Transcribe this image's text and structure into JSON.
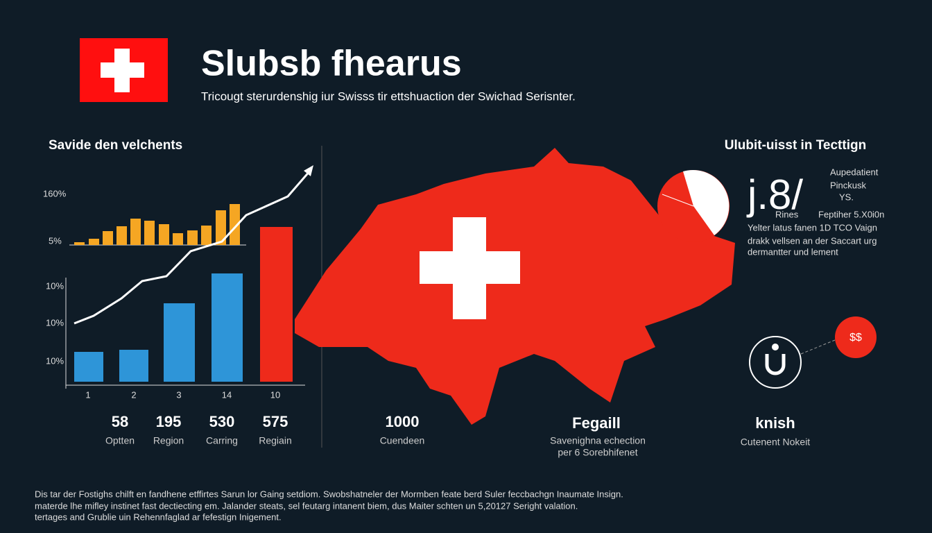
{
  "header": {
    "title": "Slubsb fhearus",
    "subtitle": "Tricougt sterurdenshig iur Swisss tir ettshuaction der Swichad Serisnter."
  },
  "left_panel": {
    "heading": "Savide den velchents",
    "top_axis_labels": [
      "160%",
      "5%"
    ],
    "bottom_axis_labels": [
      "10%",
      "10%",
      "10%"
    ],
    "x_labels": [
      "1",
      "2",
      "3",
      "14",
      "10"
    ]
  },
  "stats": [
    {
      "value": "58",
      "label": "Optten"
    },
    {
      "value": "195",
      "label": "Region"
    },
    {
      "value": "530",
      "label": "Carring"
    },
    {
      "value": "575",
      "label": "Regiain"
    },
    {
      "value": "1000",
      "label": "Cuendeen"
    },
    {
      "value": "Fegaill",
      "label": "Savenighna echection",
      "label2": "per 6 Sorebhifenet"
    },
    {
      "value": "knish",
      "label": "Cutenent Nokeit"
    }
  ],
  "right_panel": {
    "heading": "Ulubit-uisst in Tecttign",
    "big_figure": "j.8/",
    "notes": [
      "Aupedatient",
      "Pinckusk",
      "YS."
    ],
    "rines": "Rines",
    "feptiher": "Feptiher 5.X0i0n",
    "description": [
      "Yelter latus fanen 1D TCO Vaign",
      "drakk vellsen an der Saccart urg",
      "dermantter und lement"
    ],
    "badge": "$$"
  },
  "footer": {
    "lines": [
      "Dis tar der Fostighs chilft en fandhene etffirtes Sarun lor Gaing setdiom. Swobshatneler der Mormben feate berd Suler feccbachgn Inaumate Insign.",
      "materde lhe mifley instinet fast dectiecting em. Jalander steats, sel feutarg intanent biem, dus Maiter schten un 5,20127 Seright valation.",
      "tertages and Grublie uin Rehennfaglad ar fefestign Inigement."
    ]
  }
}
